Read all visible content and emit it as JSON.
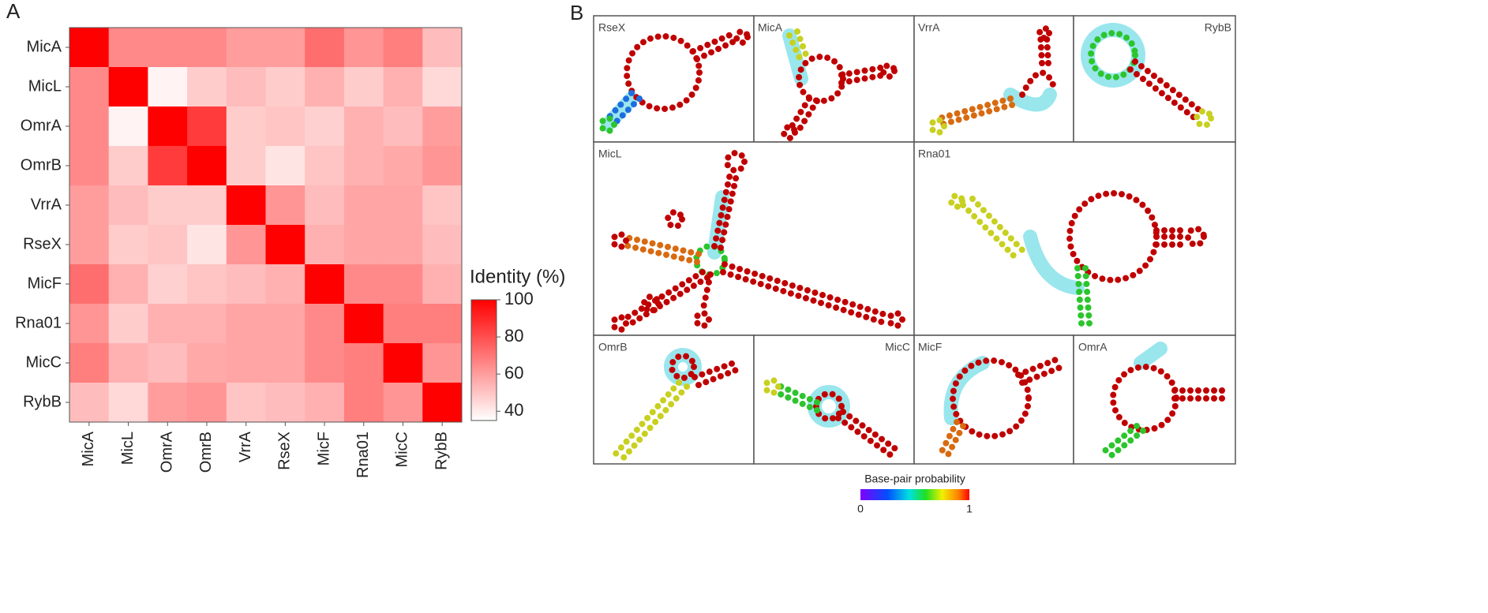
{
  "chart_data": {
    "type": "heatmap",
    "panel_label": "A",
    "rows": [
      "MicA",
      "MicL",
      "OmrA",
      "OmrB",
      "VrrA",
      "RseX",
      "MicF",
      "Rna01",
      "MicC",
      "RybB"
    ],
    "columns": [
      "MicA",
      "MicL",
      "OmrA",
      "OmrB",
      "VrrA",
      "RseX",
      "MicF",
      "Rna01",
      "MicC",
      "RybB"
    ],
    "values": [
      [
        100,
        65,
        65,
        65,
        60,
        60,
        72,
        62,
        68,
        52
      ],
      [
        65,
        100,
        38,
        48,
        52,
        48,
        55,
        48,
        55,
        45
      ],
      [
        65,
        38,
        100,
        85,
        48,
        50,
        47,
        55,
        52,
        60
      ],
      [
        65,
        48,
        85,
        100,
        48,
        42,
        50,
        55,
        57,
        62
      ],
      [
        60,
        52,
        48,
        48,
        100,
        62,
        52,
        58,
        58,
        50
      ],
      [
        60,
        48,
        50,
        42,
        62,
        100,
        55,
        58,
        58,
        52
      ],
      [
        72,
        55,
        47,
        50,
        52,
        55,
        100,
        65,
        65,
        55
      ],
      [
        62,
        48,
        55,
        55,
        58,
        58,
        65,
        100,
        68,
        68
      ],
      [
        68,
        55,
        52,
        57,
        58,
        58,
        65,
        68,
        100,
        62
      ],
      [
        52,
        45,
        60,
        62,
        50,
        52,
        55,
        68,
        62,
        100
      ]
    ],
    "colorbar": {
      "title": "Identity (%)",
      "lim": [
        35,
        100
      ],
      "ticks": [
        40,
        60,
        80,
        100
      ],
      "colors": [
        "#ffffff",
        "#ff0000"
      ]
    }
  },
  "panel_b": {
    "panel_label": "B",
    "boxes": [
      "RseX",
      "MicA",
      "VrrA",
      "RybB",
      "MicL",
      "Rna01",
      "OmrB",
      "MicC",
      "MicF",
      "OmrA"
    ],
    "colorbar": {
      "title": "Base-pair probability",
      "ticks": [
        0,
        1
      ]
    }
  }
}
